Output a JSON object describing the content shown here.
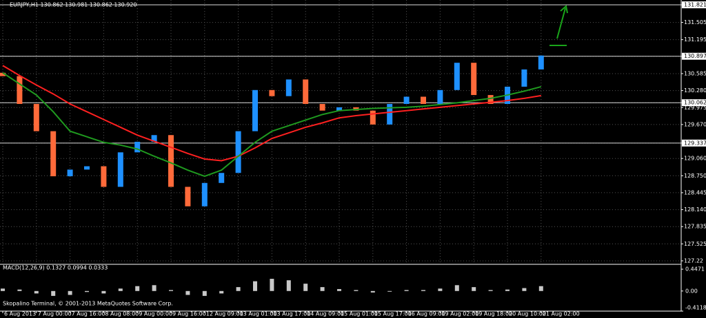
{
  "chart_data": {
    "type": "candlestick",
    "title": "EURJPY,H1  130.862 130.981 130.862 130.920",
    "footer": "Skopalino Terminal, © 2001-2013 MetaQuotes Software Corp.",
    "categories": [
      "6 Aug 2013",
      null,
      "7 Aug 00:00",
      null,
      "7 Aug 16:00",
      null,
      "8 Aug 08:00",
      null,
      "9 Aug 00:00",
      null,
      "9 Aug 16:00",
      null,
      "12 Aug 09:00",
      null,
      "13 Aug 01:00",
      null,
      "13 Aug 17:00",
      null,
      "14 Aug 09:00",
      null,
      "15 Aug 01:00",
      null,
      "15 Aug 17:00",
      null,
      "16 Aug 09:00",
      null,
      "19 Aug 02:00",
      null,
      "19 Aug 18:00",
      null,
      "20 Aug 10:00",
      null,
      "21 Aug 02:00"
    ],
    "open": [
      130.6,
      130.54,
      130.04,
      129.55,
      128.74,
      128.86,
      128.92,
      128.55,
      129.17,
      129.36,
      129.48,
      128.55,
      128.2,
      128.62,
      128.8,
      129.55,
      130.29,
      130.18,
      130.48,
      130.04,
      129.92,
      129.98,
      129.92,
      129.67,
      130.04,
      130.17,
      130.04,
      130.29,
      130.78,
      130.2,
      130.04,
      130.35,
      130.66
    ],
    "close": [
      130.54,
      130.04,
      129.55,
      128.74,
      128.86,
      128.92,
      128.55,
      129.17,
      129.36,
      129.48,
      128.55,
      128.2,
      128.62,
      128.8,
      129.55,
      130.29,
      130.18,
      130.48,
      130.04,
      129.92,
      129.98,
      129.92,
      129.67,
      130.04,
      130.17,
      130.04,
      130.29,
      130.78,
      130.2,
      130.04,
      130.35,
      130.66,
      130.91
    ],
    "up_color": "#1e90ff",
    "down_color": "#ff6a3a",
    "series": [
      {
        "color": "#ff2020",
        "values": [
          130.73,
          130.55,
          130.38,
          130.22,
          130.04,
          129.9,
          129.76,
          129.62,
          129.48,
          129.37,
          129.26,
          129.15,
          129.05,
          129.02,
          129.1,
          129.25,
          129.42,
          129.52,
          129.62,
          129.7,
          129.79,
          129.83,
          129.86,
          129.89,
          129.92,
          129.95,
          129.98,
          130.01,
          130.04,
          130.07,
          130.1,
          130.14,
          130.19
        ]
      },
      {
        "color": "#1f9a1f",
        "values": [
          130.6,
          130.4,
          130.2,
          129.9,
          129.55,
          129.45,
          129.35,
          129.3,
          129.23,
          129.1,
          128.98,
          128.85,
          128.74,
          128.85,
          129.1,
          129.35,
          129.55,
          129.65,
          129.75,
          129.85,
          129.92,
          129.94,
          129.96,
          129.97,
          129.98,
          130.0,
          130.03,
          130.06,
          130.1,
          130.14,
          130.2,
          130.27,
          130.35
        ]
      }
    ],
    "ylim": [
      127.17,
      131.908
    ],
    "yticks": [
      131.821,
      131.505,
      131.195,
      130.897,
      130.585,
      {
        "value": 130.28,
        "label": "130.280"
      },
      130.062,
      129.975,
      {
        "value": 129.67,
        "label": "129.670"
      },
      129.337,
      {
        "value": 129.06,
        "label": "129.060"
      },
      {
        "value": 128.75,
        "label": "128.750"
      },
      128.445,
      {
        "value": 128.14,
        "label": "128.140"
      },
      127.835,
      127.525,
      127.22
    ],
    "hlines": [
      131.821,
      130.897,
      130.062,
      129.337
    ],
    "grid": true,
    "macd": {
      "label": "MACD(12,26,9) 0.1327 0.0994 0.0333",
      "color": "#c8c8c8",
      "values": [
        0.05,
        0.03,
        -0.05,
        -0.1,
        -0.08,
        -0.02,
        -0.05,
        0.05,
        0.1,
        0.12,
        0.02,
        -0.08,
        -0.1,
        -0.05,
        0.08,
        0.2,
        0.25,
        0.22,
        0.15,
        0.08,
        0.04,
        0.02,
        -0.03,
        0.0,
        0.02,
        0.02,
        0.05,
        0.12,
        0.08,
        0.02,
        0.03,
        0.06,
        0.1
      ],
      "ylim": [
        -0.4118,
        0.533
      ],
      "yticks": [
        0.4471,
        {
          "value": 0,
          "label": "0.00"
        },
        -0.4118
      ]
    }
  }
}
